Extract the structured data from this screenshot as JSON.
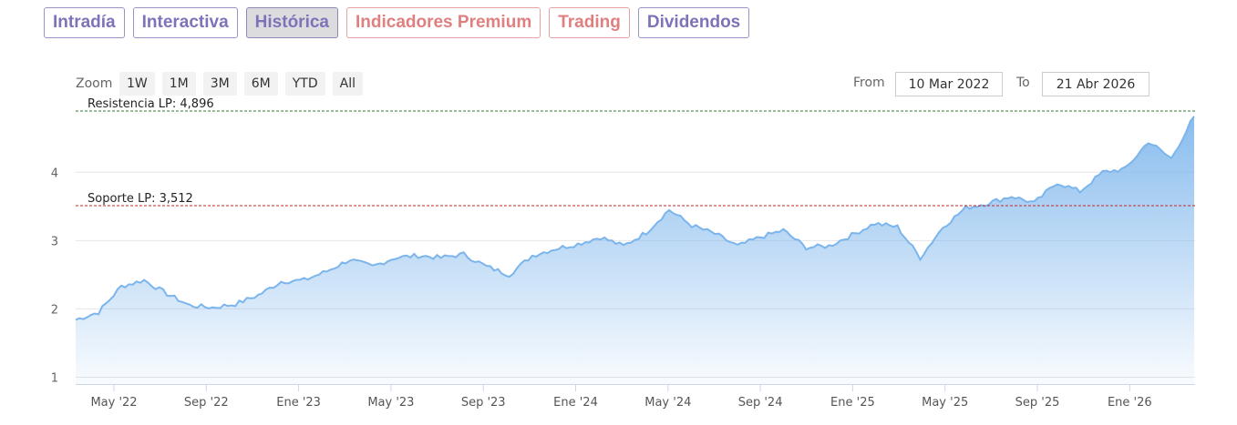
{
  "tabs": [
    {
      "label": "Intradía",
      "style": "normal"
    },
    {
      "label": "Interactiva",
      "style": "normal"
    },
    {
      "label": "Histórica",
      "style": "active"
    },
    {
      "label": "Indicadores Premium",
      "style": "red"
    },
    {
      "label": "Trading",
      "style": "red"
    },
    {
      "label": "Dividendos",
      "style": "normal"
    }
  ],
  "toolbar": {
    "zoom_label": "Zoom",
    "zoom_buttons": [
      "1W",
      "1M",
      "3M",
      "6M",
      "YTD",
      "All"
    ],
    "from_label": "From",
    "from_value": "10 Mar 2022",
    "to_label": "To",
    "to_value": "21 Abr 2026"
  },
  "chart_data": {
    "type": "area",
    "x_ticks": [
      "May '22",
      "Sep '22",
      "Ene '23",
      "May '23",
      "Sep '23",
      "Ene '24",
      "May '24",
      "Sep '24",
      "Ene '25",
      "May '25",
      "Sep '25",
      "Ene '26"
    ],
    "y_ticks": [
      "1",
      "2",
      "3",
      "4"
    ],
    "ylim": [
      0.9,
      4.95
    ],
    "grid": true,
    "line_color": "#7cb5ec",
    "lines": [
      {
        "label": "Resistencia LP: 4,896",
        "value": 4.896,
        "color": "#2e7d32"
      },
      {
        "label": "Soporte LP: 3,512",
        "value": 3.512,
        "color": "#c62828"
      }
    ],
    "series": [
      {
        "x": [
          "2022-03",
          "2022-04",
          "2022-05",
          "2022-06",
          "2022-07",
          "2022-08",
          "2022-09",
          "2022-10",
          "2022-11",
          "2022-12",
          "2023-01",
          "2023-02",
          "2023-03",
          "2023-04",
          "2023-05",
          "2023-06",
          "2023-07",
          "2023-08",
          "2023-09",
          "2023-10",
          "2023-11",
          "2023-12",
          "2024-01",
          "2024-02",
          "2024-03",
          "2024-04",
          "2024-05",
          "2024-06",
          "2024-07",
          "2024-08",
          "2024-09",
          "2024-10",
          "2024-11",
          "2024-12",
          "2025-01",
          "2025-02",
          "2025-03",
          "2025-04",
          "2025-05",
          "2025-06",
          "2025-07",
          "2025-08",
          "2025-09",
          "2025-10",
          "2025-11",
          "2025-12",
          "2026-01",
          "2026-02",
          "2026-03",
          "2026-04"
        ],
        "values": [
          1.84,
          1.95,
          2.33,
          2.42,
          2.22,
          2.05,
          2.02,
          2.07,
          2.2,
          2.4,
          2.42,
          2.55,
          2.72,
          2.62,
          2.75,
          2.78,
          2.75,
          2.8,
          2.62,
          2.5,
          2.78,
          2.88,
          2.95,
          3.05,
          2.92,
          3.12,
          3.45,
          3.22,
          3.1,
          2.92,
          3.05,
          3.15,
          2.9,
          2.92,
          3.08,
          3.25,
          3.2,
          2.75,
          3.2,
          3.48,
          3.55,
          3.65,
          3.55,
          3.85,
          3.72,
          4.0,
          4.05,
          4.45,
          4.2,
          4.82
        ]
      }
    ]
  }
}
